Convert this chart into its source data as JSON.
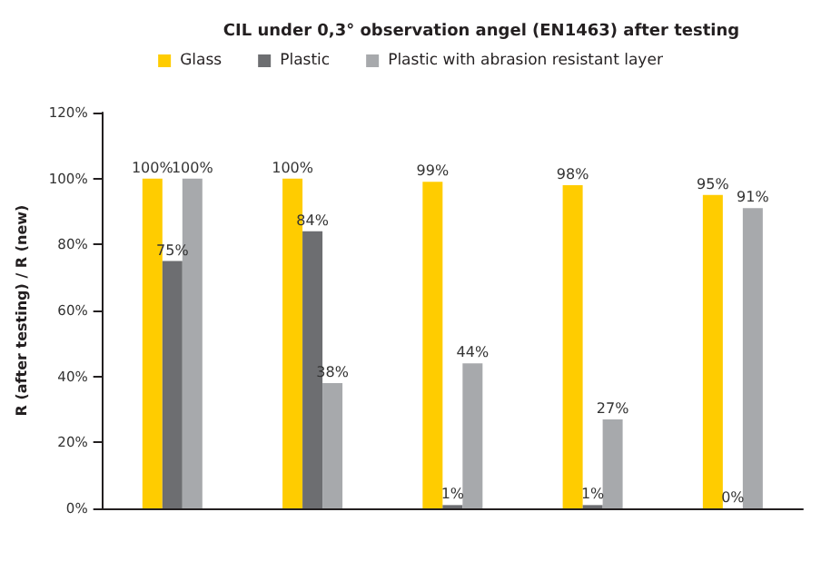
{
  "chart_data": {
    "type": "bar",
    "title": "CIL under 0,3° observation angel (EN1463) after testing",
    "ylabel": "R (after testing) / R (new)",
    "categories": [
      null,
      null,
      null,
      null,
      null
    ],
    "series": [
      {
        "name": "Glass",
        "color": "#ffcc00",
        "values": [
          100,
          100,
          99,
          98,
          95
        ],
        "value_labels": [
          "100%",
          "100%",
          "99%",
          "98%",
          "95%"
        ]
      },
      {
        "name": "Plastic",
        "color": "#6d6e71",
        "values": [
          75,
          84,
          1,
          1,
          0
        ],
        "value_labels": [
          "75%",
          "84%",
          "1%",
          "1%",
          "0%"
        ]
      },
      {
        "name": "Plastic with abrasion resistant layer",
        "color": "#a7a9ac",
        "values": [
          100,
          38,
          44,
          27,
          91
        ],
        "value_labels": [
          "100%",
          "38%",
          "44%",
          "27%",
          "91%"
        ]
      }
    ],
    "ylim": [
      0,
      120
    ],
    "yticks": [
      {
        "value": 0,
        "label": "0%"
      },
      {
        "value": 20,
        "label": "20%"
      },
      {
        "value": 40,
        "label": "40%"
      },
      {
        "value": 60,
        "label": "60%"
      },
      {
        "value": 80,
        "label": "80%"
      },
      {
        "value": 100,
        "label": "100%"
      },
      {
        "value": 120,
        "label": "120%"
      }
    ],
    "grid": false,
    "legend": "top"
  }
}
